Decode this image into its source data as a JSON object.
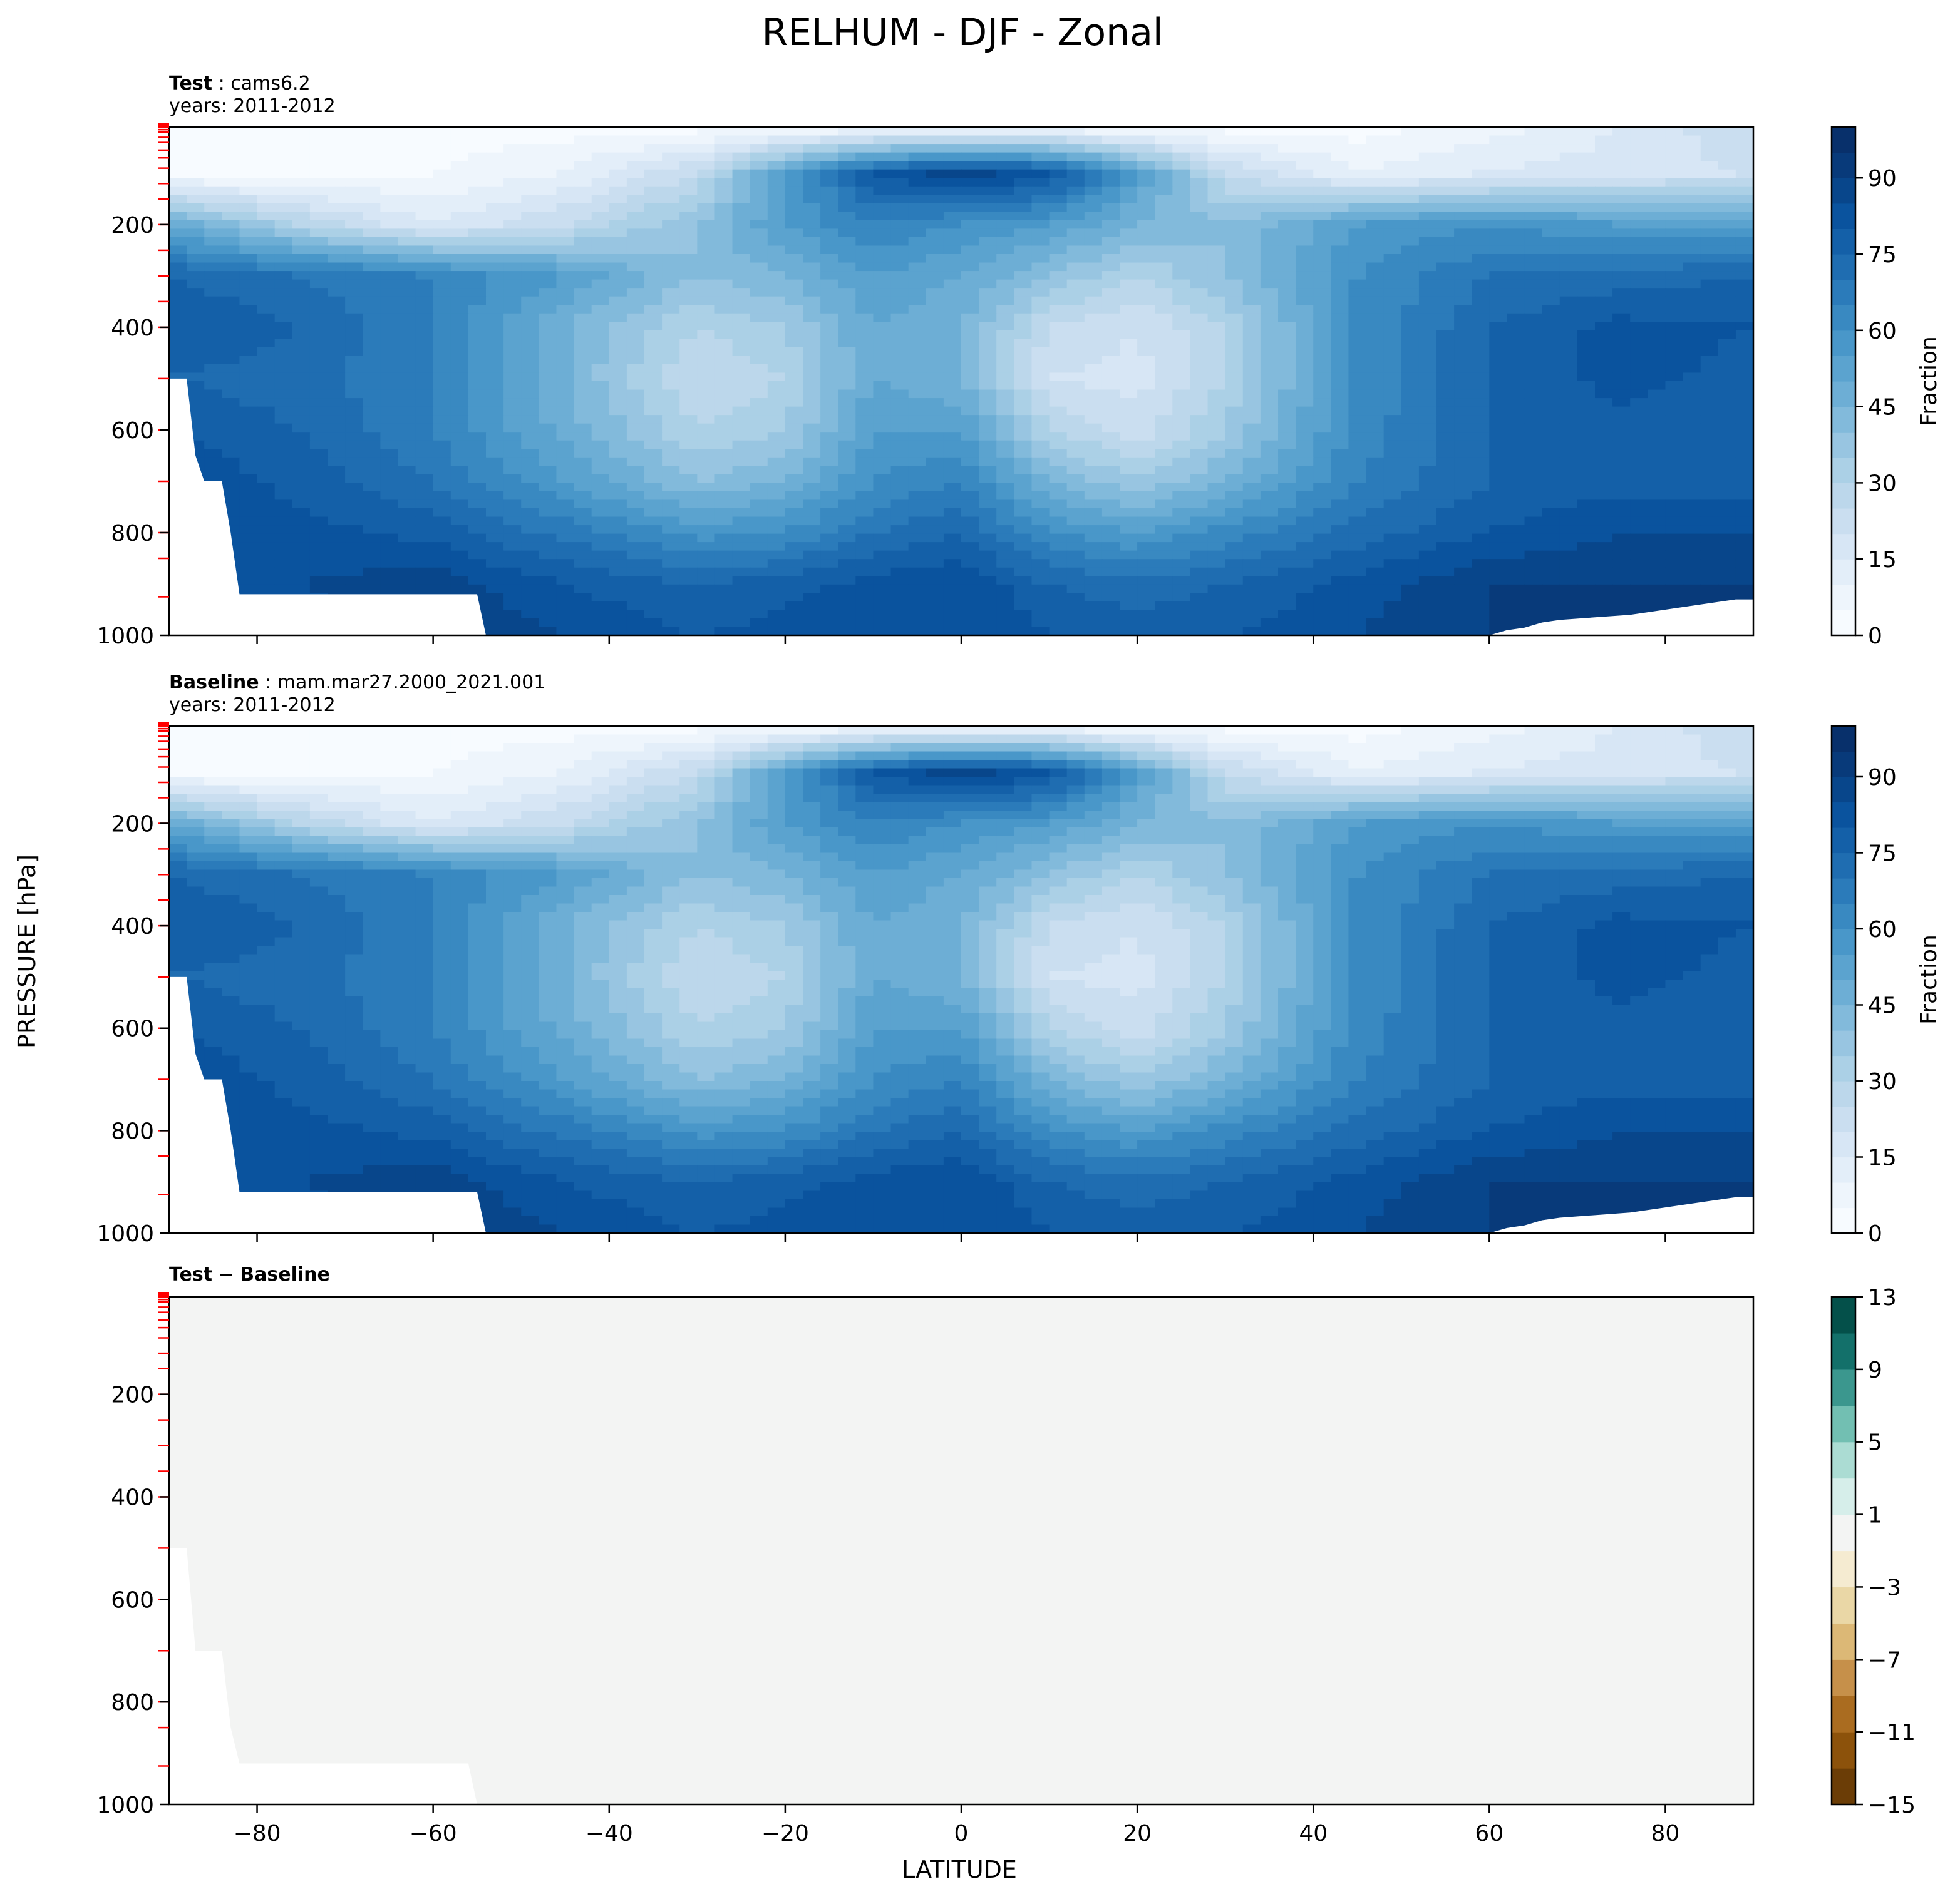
{
  "figure": {
    "title": "RELHUM - DJF - Zonal",
    "ylabel": "PRESSURE [hPa]",
    "xlabel": "LATITUDE"
  },
  "panels": [
    {
      "label_bold": "Test",
      "label_sep": ":",
      "label_rest": "cams6.2",
      "years": "years: 2011-2012",
      "colorbar_label": "Fraction"
    },
    {
      "label_bold": "Baseline",
      "label_sep": ":",
      "label_rest": "mam.mar27.2000_2021.001",
      "years": "years: 2011-2012",
      "colorbar_label": "Fraction"
    },
    {
      "label_bold": "Test",
      "label_sep": "−",
      "label_rest": "Baseline",
      "years": "",
      "colorbar_label": ""
    }
  ],
  "colors": {
    "blues": [
      "#f7fbff",
      "#eef5fc",
      "#e3eef9",
      "#d7e6f5",
      "#cadef0",
      "#bcd7eb",
      "#abd0e6",
      "#98c5e1",
      "#82badb",
      "#6daed5",
      "#5ba3cf",
      "#4997c9",
      "#3989c1",
      "#2b7bba",
      "#1f6db1",
      "#1460a8",
      "#0a539e",
      "#08468b",
      "#083a7a",
      "#08306b"
    ],
    "diff": [
      "#6b3d06",
      "#8c520b",
      "#aa6c20",
      "#c6904a",
      "#dcb876",
      "#ead7a6",
      "#f5ebd1",
      "#f3f4f3",
      "#d6eeea",
      "#abdcd3",
      "#72bfb2",
      "#3b978e",
      "#13706a",
      "#04504a"
    ],
    "zero_diff": "#f3f4f3",
    "boundary_tick": "#ff0000"
  },
  "chart_data": [
    {
      "type": "heatmap",
      "panel": "Test",
      "x": [
        -90,
        -75,
        -60,
        -45,
        -30,
        -20,
        -10,
        0,
        10,
        20,
        30,
        45,
        60,
        75,
        90
      ],
      "y": [
        10,
        100,
        200,
        300,
        400,
        500,
        600,
        700,
        800,
        900,
        1000
      ],
      "values": [
        [
          3,
          3,
          3,
          3,
          3,
          3,
          5,
          5,
          5,
          3,
          3,
          3,
          8,
          15,
          25
        ],
        [
          3,
          3,
          5,
          10,
          25,
          55,
          80,
          88,
          82,
          55,
          25,
          10,
          15,
          18,
          20
        ],
        [
          50,
          30,
          15,
          25,
          40,
          55,
          65,
          60,
          55,
          45,
          40,
          55,
          60,
          55,
          55
        ],
        [
          75,
          70,
          65,
          55,
          40,
          45,
          55,
          50,
          40,
          30,
          40,
          60,
          70,
          72,
          75
        ],
        [
          80,
          75,
          65,
          45,
          30,
          35,
          50,
          45,
          25,
          20,
          30,
          60,
          75,
          82,
          80
        ],
        [
          75,
          72,
          65,
          45,
          25,
          30,
          50,
          45,
          20,
          18,
          30,
          60,
          75,
          82,
          78
        ],
        [
          80,
          75,
          65,
          48,
          30,
          35,
          55,
          55,
          30,
          22,
          35,
          62,
          75,
          78,
          75
        ],
        [
          85,
          78,
          70,
          55,
          40,
          45,
          60,
          65,
          45,
          35,
          45,
          65,
          75,
          78,
          78
        ],
        [
          85,
          82,
          78,
          68,
          58,
          60,
          70,
          75,
          60,
          55,
          62,
          72,
          80,
          85,
          85
        ],
        [
          85,
          85,
          88,
          80,
          75,
          78,
          82,
          85,
          75,
          72,
          75,
          82,
          90,
          90,
          90
        ],
        [
          80,
          82,
          90,
          85,
          80,
          82,
          85,
          85,
          80,
          78,
          80,
          85,
          90,
          92,
          92
        ]
      ],
      "ylim": [
        1000,
        10
      ],
      "xlim": [
        -90,
        90
      ],
      "xticks": [
        -80,
        -60,
        -40,
        -20,
        0,
        20,
        40,
        60,
        80
      ],
      "yticks": [
        200,
        400,
        600,
        800,
        1000
      ],
      "colorbar": {
        "label": "Fraction",
        "levels": [
          0,
          5,
          10,
          15,
          20,
          25,
          30,
          35,
          40,
          45,
          50,
          55,
          60,
          65,
          70,
          75,
          80,
          85,
          90,
          95,
          100
        ],
        "ticks": [
          0,
          15,
          30,
          45,
          60,
          75,
          90
        ]
      }
    },
    {
      "type": "heatmap",
      "panel": "Baseline",
      "same_values_as": "Test",
      "ylim": [
        1000,
        10
      ],
      "xlim": [
        -90,
        90
      ],
      "xticks": [
        -80,
        -60,
        -40,
        -20,
        0,
        20,
        40,
        60,
        80
      ],
      "yticks": [
        200,
        400,
        600,
        800,
        1000
      ],
      "colorbar": {
        "label": "Fraction",
        "levels": [
          0,
          5,
          10,
          15,
          20,
          25,
          30,
          35,
          40,
          45,
          50,
          55,
          60,
          65,
          70,
          75,
          80,
          85,
          90,
          95,
          100
        ],
        "ticks": [
          0,
          15,
          30,
          45,
          60,
          75,
          90
        ]
      }
    },
    {
      "type": "heatmap",
      "panel": "Test - Baseline",
      "uniform_value": 0,
      "ylim": [
        1000,
        10
      ],
      "xlim": [
        -90,
        90
      ],
      "xticks": [
        -80,
        -60,
        -40,
        -20,
        0,
        20,
        40,
        60,
        80
      ],
      "xticklabels": [
        "−80",
        "−60",
        "−40",
        "−20",
        "0",
        "20",
        "40",
        "60",
        "80"
      ],
      "yticks": [
        200,
        400,
        600,
        800,
        1000
      ],
      "colorbar": {
        "levels": [
          -15,
          -13,
          -11,
          -9,
          -7,
          -5,
          -3,
          -1,
          1,
          3,
          5,
          7,
          9,
          11,
          13
        ],
        "ticks": [
          -15,
          -11,
          -7,
          -3,
          1,
          5,
          9,
          13
        ],
        "ticklabels": [
          "−15",
          "−11",
          "−7",
          "−3",
          "1",
          "5",
          "9",
          "13"
        ]
      }
    }
  ],
  "model_level_ticks_hPa": [
    3,
    5,
    7,
    10,
    15,
    20,
    30,
    40,
    55,
    70,
    90,
    120,
    150,
    200,
    250,
    300,
    350,
    400,
    500,
    600,
    700,
    800,
    850,
    925
  ],
  "masked_region_Test": [
    [
      -90,
      500
    ],
    [
      -88,
      500
    ],
    [
      -87,
      650
    ],
    [
      -86,
      700
    ],
    [
      -84,
      700
    ],
    [
      -83,
      800
    ],
    [
      -82,
      920
    ],
    [
      -55,
      920
    ],
    [
      -54,
      1000
    ],
    [
      -90,
      1000
    ]
  ],
  "masked_region_Test_right": [
    [
      60,
      1000
    ],
    [
      62,
      990
    ],
    [
      64,
      985
    ],
    [
      66,
      975
    ],
    [
      68,
      970
    ],
    [
      72,
      965
    ],
    [
      76,
      960
    ],
    [
      80,
      950
    ],
    [
      84,
      940
    ],
    [
      88,
      930
    ],
    [
      90,
      930
    ],
    [
      90,
      1000
    ]
  ],
  "masked_region_Diff": [
    [
      -90,
      500
    ],
    [
      -88,
      500
    ],
    [
      -87,
      700
    ],
    [
      -84,
      700
    ],
    [
      -83,
      850
    ],
    [
      -82,
      920
    ],
    [
      -56,
      920
    ],
    [
      -55,
      1000
    ],
    [
      -90,
      1000
    ]
  ]
}
